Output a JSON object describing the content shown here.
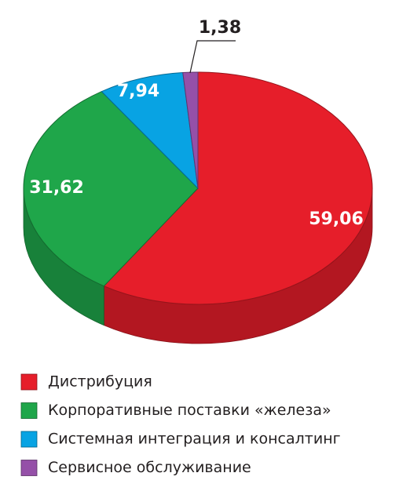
{
  "chart_data": {
    "type": "pie",
    "categories": [
      "Дистрибуция",
      "Корпоративные поставки «железа»",
      "Системная интеграция и консалтинг",
      "Сервисное обслуживание"
    ],
    "values": [
      59.06,
      31.62,
      7.94,
      1.38
    ],
    "value_labels": [
      "59,06",
      "31,62",
      "7,94",
      "1,38"
    ],
    "colors": [
      "#e61e2a",
      "#1fa64a",
      "#08a3e3",
      "#9550a8"
    ],
    "legend": "bottom"
  }
}
